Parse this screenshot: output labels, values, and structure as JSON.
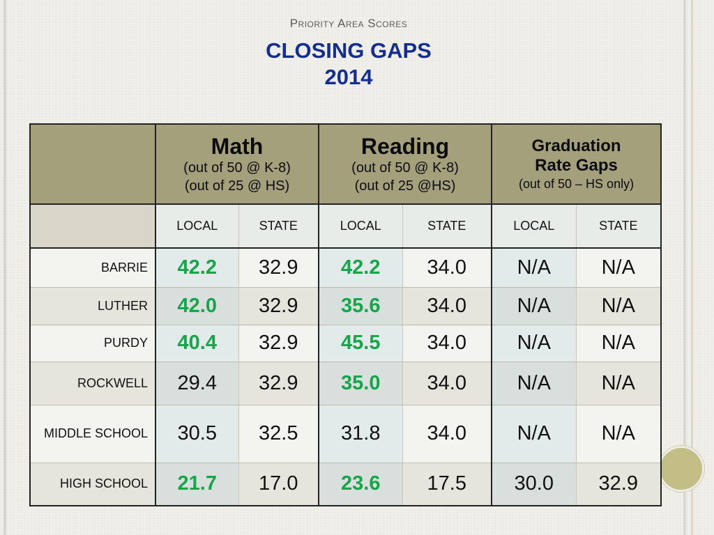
{
  "slide": {
    "subtitle": "Priority Area Scores",
    "title_line1": "CLOSING GAPS",
    "title_line2": "2014"
  },
  "table": {
    "groups": [
      {
        "title": "Math",
        "lines": [
          "(out of 50 @ K-8)",
          "(out of 25 @ HS)"
        ]
      },
      {
        "title": "Reading",
        "lines": [
          "(out of 50 @ K-8)",
          "(out of 25 @HS)"
        ]
      },
      {
        "title_line1": "Graduation",
        "title_line2": "Rate Gaps",
        "line": "(out of 50 – HS only)"
      }
    ],
    "subheaders": [
      "LOCAL",
      "STATE",
      "LOCAL",
      "STATE",
      "LOCAL",
      "STATE"
    ],
    "rows": [
      {
        "name": "BARRIE",
        "values": [
          "42.2",
          "32.9",
          "42.2",
          "34.0",
          "N/A",
          "N/A"
        ],
        "highlight": [
          true,
          false,
          true,
          false,
          false,
          false
        ]
      },
      {
        "name": "LUTHER",
        "values": [
          "42.0",
          "32.9",
          "35.6",
          "34.0",
          "N/A",
          "N/A"
        ],
        "highlight": [
          true,
          false,
          true,
          false,
          false,
          false
        ]
      },
      {
        "name": "PURDY",
        "values": [
          "40.4",
          "32.9",
          "45.5",
          "34.0",
          "N/A",
          "N/A"
        ],
        "highlight": [
          true,
          false,
          true,
          false,
          false,
          false
        ]
      },
      {
        "name": "ROCKWELL",
        "values": [
          "29.4",
          "32.9",
          "35.0",
          "34.0",
          "N/A",
          "N/A"
        ],
        "highlight": [
          false,
          false,
          true,
          false,
          false,
          false
        ]
      },
      {
        "name": "MIDDLE SCHOOL",
        "values": [
          "30.5",
          "32.5",
          "31.8",
          "34.0",
          "N/A",
          "N/A"
        ],
        "highlight": [
          false,
          false,
          false,
          false,
          false,
          false
        ]
      },
      {
        "name": "HIGH SCHOOL",
        "values": [
          "21.7",
          "17.0",
          "23.6",
          "17.5",
          "30.0",
          "32.9"
        ],
        "highlight": [
          true,
          false,
          true,
          false,
          false,
          false
        ]
      }
    ]
  },
  "colors": {
    "title": "#142e8f",
    "header_bg": "#a4a07c",
    "highlight_value": "#16a64a"
  }
}
